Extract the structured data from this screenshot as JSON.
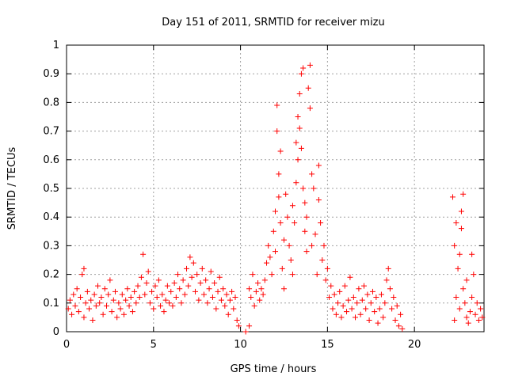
{
  "chart_data": {
    "type": "scatter",
    "title": "Day 151 of 2011, SRMTID for receiver mizu",
    "xlabel": "GPS time / hours",
    "ylabel": "SRMTID / TECUs",
    "xlim": [
      0,
      24
    ],
    "ylim": [
      0,
      1
    ],
    "xticks": [
      0,
      5,
      10,
      15,
      20
    ],
    "xtick_labels": [
      "0",
      "5",
      "10",
      "15",
      "20"
    ],
    "yticks": [
      0,
      0.1,
      0.2,
      0.3,
      0.4,
      0.5,
      0.6,
      0.7,
      0.8,
      0.9,
      1
    ],
    "ytick_labels": [
      "0",
      "0.1",
      "0.2",
      "0.3",
      "0.4",
      "0.5",
      "0.6",
      "0.7",
      "0.8",
      "0.9",
      "1"
    ],
    "grid": true,
    "marker": "+",
    "color": "#ff0000",
    "series": [
      {
        "name": "SRMTID",
        "points": [
          [
            0.1,
            0.08
          ],
          [
            0.2,
            0.11
          ],
          [
            0.3,
            0.06
          ],
          [
            0.4,
            0.13
          ],
          [
            0.5,
            0.09
          ],
          [
            0.6,
            0.15
          ],
          [
            0.7,
            0.07
          ],
          [
            0.8,
            0.12
          ],
          [
            0.9,
            0.2
          ],
          [
            1.0,
            0.22
          ],
          [
            1.0,
            0.05
          ],
          [
            1.1,
            0.1
          ],
          [
            1.2,
            0.14
          ],
          [
            1.3,
            0.08
          ],
          [
            1.4,
            0.11
          ],
          [
            1.5,
            0.04
          ],
          [
            1.6,
            0.13
          ],
          [
            1.7,
            0.09
          ],
          [
            1.8,
            0.16
          ],
          [
            1.9,
            0.1
          ],
          [
            2.0,
            0.12
          ],
          [
            2.1,
            0.06
          ],
          [
            2.2,
            0.15
          ],
          [
            2.3,
            0.09
          ],
          [
            2.4,
            0.13
          ],
          [
            2.5,
            0.18
          ],
          [
            2.6,
            0.07
          ],
          [
            2.7,
            0.11
          ],
          [
            2.8,
            0.14
          ],
          [
            2.9,
            0.05
          ],
          [
            3.0,
            0.1
          ],
          [
            3.1,
            0.08
          ],
          [
            3.2,
            0.13
          ],
          [
            3.3,
            0.06
          ],
          [
            3.4,
            0.11
          ],
          [
            3.5,
            0.15
          ],
          [
            3.6,
            0.09
          ],
          [
            3.7,
            0.12
          ],
          [
            3.8,
            0.07
          ],
          [
            3.9,
            0.14
          ],
          [
            4.0,
            0.1
          ],
          [
            4.1,
            0.16
          ],
          [
            4.2,
            0.12
          ],
          [
            4.3,
            0.19
          ],
          [
            4.4,
            0.27
          ],
          [
            4.5,
            0.13
          ],
          [
            4.6,
            0.17
          ],
          [
            4.7,
            0.21
          ],
          [
            4.8,
            0.1
          ],
          [
            4.9,
            0.14
          ],
          [
            5.0,
            0.08
          ],
          [
            5.1,
            0.16
          ],
          [
            5.2,
            0.12
          ],
          [
            5.3,
            0.18
          ],
          [
            5.4,
            0.09
          ],
          [
            5.5,
            0.13
          ],
          [
            5.6,
            0.07
          ],
          [
            5.7,
            0.11
          ],
          [
            5.8,
            0.16
          ],
          [
            5.9,
            0.1
          ],
          [
            6.0,
            0.14
          ],
          [
            6.1,
            0.09
          ],
          [
            6.2,
            0.17
          ],
          [
            6.3,
            0.12
          ],
          [
            6.4,
            0.2
          ],
          [
            6.5,
            0.15
          ],
          [
            6.6,
            0.1
          ],
          [
            6.7,
            0.18
          ],
          [
            6.8,
            0.13
          ],
          [
            6.9,
            0.22
          ],
          [
            7.0,
            0.16
          ],
          [
            7.1,
            0.26
          ],
          [
            7.2,
            0.19
          ],
          [
            7.3,
            0.24
          ],
          [
            7.4,
            0.14
          ],
          [
            7.5,
            0.2
          ],
          [
            7.6,
            0.11
          ],
          [
            7.7,
            0.17
          ],
          [
            7.8,
            0.22
          ],
          [
            7.9,
            0.13
          ],
          [
            8.0,
            0.18
          ],
          [
            8.1,
            0.1
          ],
          [
            8.2,
            0.15
          ],
          [
            8.3,
            0.21
          ],
          [
            8.4,
            0.12
          ],
          [
            8.5,
            0.17
          ],
          [
            8.6,
            0.08
          ],
          [
            8.7,
            0.14
          ],
          [
            8.8,
            0.19
          ],
          [
            8.9,
            0.11
          ],
          [
            9.0,
            0.15
          ],
          [
            9.1,
            0.09
          ],
          [
            9.2,
            0.13
          ],
          [
            9.3,
            0.06
          ],
          [
            9.4,
            0.11
          ],
          [
            9.5,
            0.14
          ],
          [
            9.6,
            0.08
          ],
          [
            9.7,
            0.12
          ],
          [
            9.8,
            0.04
          ],
          [
            9.9,
            0.02
          ],
          [
            10.3,
            0.0
          ],
          [
            10.5,
            0.02
          ],
          [
            10.5,
            0.15
          ],
          [
            10.6,
            0.12
          ],
          [
            10.7,
            0.2
          ],
          [
            10.8,
            0.09
          ],
          [
            10.9,
            0.14
          ],
          [
            11.0,
            0.17
          ],
          [
            11.1,
            0.11
          ],
          [
            11.2,
            0.15
          ],
          [
            11.3,
            0.13
          ],
          [
            11.4,
            0.18
          ],
          [
            11.5,
            0.24
          ],
          [
            11.6,
            0.3
          ],
          [
            11.7,
            0.26
          ],
          [
            11.8,
            0.2
          ],
          [
            11.9,
            0.35
          ],
          [
            12.0,
            0.42
          ],
          [
            12.0,
            0.28
          ],
          [
            12.1,
            0.7
          ],
          [
            12.1,
            0.79
          ],
          [
            12.2,
            0.55
          ],
          [
            12.2,
            0.47
          ],
          [
            12.3,
            0.63
          ],
          [
            12.3,
            0.38
          ],
          [
            12.4,
            0.22
          ],
          [
            12.5,
            0.32
          ],
          [
            12.5,
            0.15
          ],
          [
            12.6,
            0.48
          ],
          [
            12.7,
            0.4
          ],
          [
            12.8,
            0.3
          ],
          [
            12.9,
            0.25
          ],
          [
            13.0,
            0.2
          ],
          [
            13.0,
            0.44
          ],
          [
            13.1,
            0.38
          ],
          [
            13.2,
            0.52
          ],
          [
            13.2,
            0.66
          ],
          [
            13.3,
            0.75
          ],
          [
            13.3,
            0.6
          ],
          [
            13.4,
            0.83
          ],
          [
            13.4,
            0.71
          ],
          [
            13.5,
            0.9
          ],
          [
            13.5,
            0.64
          ],
          [
            13.6,
            0.92
          ],
          [
            13.6,
            0.5
          ],
          [
            13.7,
            0.45
          ],
          [
            13.7,
            0.35
          ],
          [
            13.8,
            0.28
          ],
          [
            13.8,
            0.4
          ],
          [
            13.9,
            0.85
          ],
          [
            14.0,
            0.93
          ],
          [
            14.0,
            0.78
          ],
          [
            14.1,
            0.3
          ],
          [
            14.1,
            0.55
          ],
          [
            14.2,
            0.5
          ],
          [
            14.3,
            0.34
          ],
          [
            14.4,
            0.2
          ],
          [
            14.5,
            0.58
          ],
          [
            14.5,
            0.46
          ],
          [
            14.6,
            0.38
          ],
          [
            14.7,
            0.25
          ],
          [
            14.8,
            0.3
          ],
          [
            14.9,
            0.18
          ],
          [
            15.0,
            0.22
          ],
          [
            15.1,
            0.12
          ],
          [
            15.2,
            0.16
          ],
          [
            15.3,
            0.08
          ],
          [
            15.4,
            0.13
          ],
          [
            15.5,
            0.06
          ],
          [
            15.6,
            0.1
          ],
          [
            15.7,
            0.14
          ],
          [
            15.8,
            0.05
          ],
          [
            15.9,
            0.09
          ],
          [
            16.0,
            0.16
          ],
          [
            16.1,
            0.07
          ],
          [
            16.2,
            0.11
          ],
          [
            16.3,
            0.19
          ],
          [
            16.4,
            0.08
          ],
          [
            16.5,
            0.12
          ],
          [
            16.6,
            0.05
          ],
          [
            16.7,
            0.1
          ],
          [
            16.8,
            0.15
          ],
          [
            16.9,
            0.06
          ],
          [
            17.0,
            0.11
          ],
          [
            17.1,
            0.16
          ],
          [
            17.2,
            0.08
          ],
          [
            17.3,
            0.13
          ],
          [
            17.4,
            0.04
          ],
          [
            17.5,
            0.1
          ],
          [
            17.6,
            0.14
          ],
          [
            17.7,
            0.07
          ],
          [
            17.8,
            0.12
          ],
          [
            17.9,
            0.03
          ],
          [
            18.0,
            0.08
          ],
          [
            18.1,
            0.13
          ],
          [
            18.2,
            0.05
          ],
          [
            18.3,
            0.1
          ],
          [
            18.4,
            0.18
          ],
          [
            18.5,
            0.22
          ],
          [
            18.6,
            0.15
          ],
          [
            18.7,
            0.08
          ],
          [
            18.8,
            0.12
          ],
          [
            18.9,
            0.04
          ],
          [
            19.0,
            0.09
          ],
          [
            19.1,
            0.02
          ],
          [
            19.2,
            0.06
          ],
          [
            19.3,
            0.01
          ],
          [
            22.2,
            0.47
          ],
          [
            22.3,
            0.3
          ],
          [
            22.3,
            0.04
          ],
          [
            22.4,
            0.38
          ],
          [
            22.4,
            0.12
          ],
          [
            22.5,
            0.22
          ],
          [
            22.6,
            0.08
          ],
          [
            22.6,
            0.27
          ],
          [
            22.7,
            0.42
          ],
          [
            22.7,
            0.36
          ],
          [
            22.8,
            0.48
          ],
          [
            22.8,
            0.15
          ],
          [
            22.9,
            0.1
          ],
          [
            23.0,
            0.05
          ],
          [
            23.0,
            0.18
          ],
          [
            23.1,
            0.03
          ],
          [
            23.2,
            0.07
          ],
          [
            23.3,
            0.27
          ],
          [
            23.3,
            0.12
          ],
          [
            23.4,
            0.2
          ],
          [
            23.5,
            0.06
          ],
          [
            23.6,
            0.1
          ],
          [
            23.7,
            0.04
          ],
          [
            23.8,
            0.08
          ],
          [
            23.9,
            0.05
          ]
        ]
      }
    ]
  }
}
